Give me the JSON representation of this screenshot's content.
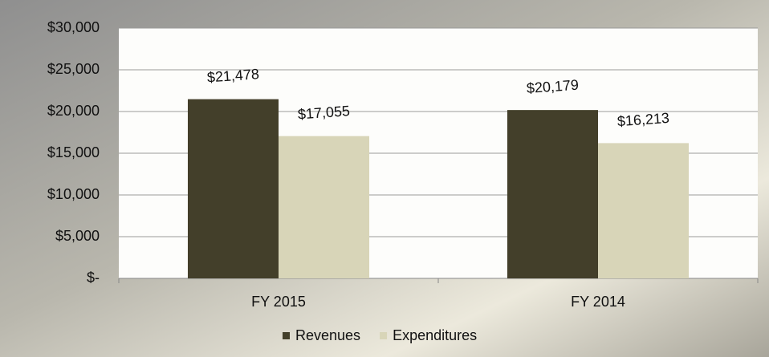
{
  "chart_data": {
    "type": "bar",
    "categories": [
      "FY 2015",
      "FY 2014"
    ],
    "series": [
      {
        "name": "Revenues",
        "color": "#433f2a",
        "values": [
          21478,
          20179
        ],
        "value_labels": [
          "$21,478",
          "$20,179"
        ]
      },
      {
        "name": "Expenditures",
        "color": "#d8d5b8",
        "values": [
          17055,
          16213
        ],
        "value_labels": [
          "$17,055",
          "$16,213"
        ]
      }
    ],
    "ylim": [
      0,
      30000
    ],
    "yticks": [
      {
        "value": 0,
        "label": "$-"
      },
      {
        "value": 5000,
        "label": "$5,000"
      },
      {
        "value": 10000,
        "label": "$10,000"
      },
      {
        "value": 15000,
        "label": "$15,000"
      },
      {
        "value": 20000,
        "label": "$20,000"
      },
      {
        "value": 25000,
        "label": "$25,000"
      },
      {
        "value": 30000,
        "label": "$30,000"
      }
    ],
    "grid": true,
    "legend": "bottom"
  }
}
